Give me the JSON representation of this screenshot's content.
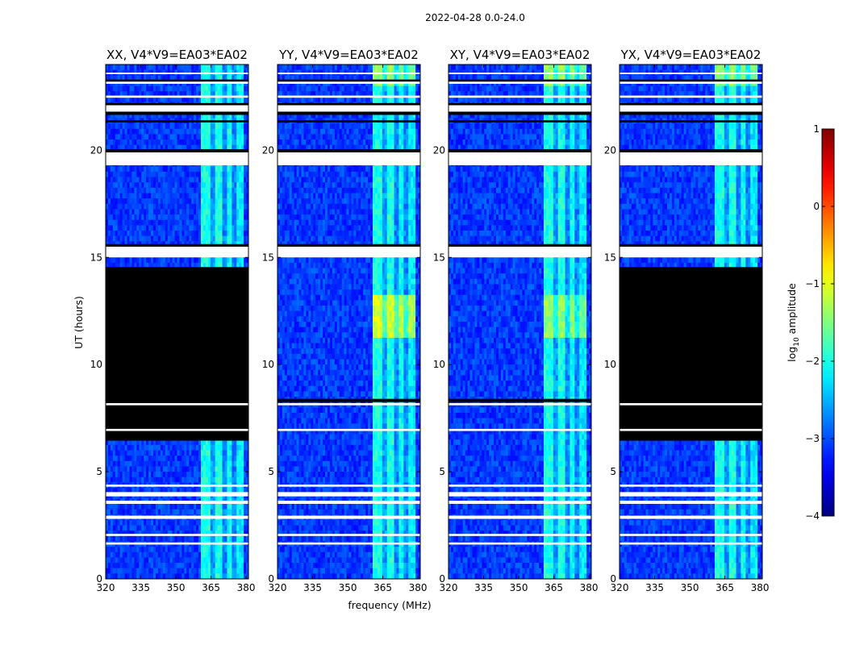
{
  "chart_data": {
    "type": "heatmap",
    "suptitle": "2022-04-28 0.0-24.0",
    "xlabel": "frequency (MHz)",
    "ylabel": "UT (hours)",
    "xlim": [
      320,
      381
    ],
    "ylim": [
      0,
      24
    ],
    "xticks": [
      320,
      335,
      350,
      365,
      380
    ],
    "yticks": [
      0,
      5,
      10,
      15,
      20
    ],
    "colorbar": {
      "label_prefix": "log",
      "label_sub": "10",
      "label_suffix": " amplitude",
      "ticks": [
        -4,
        -3,
        -2,
        -1,
        0,
        1
      ],
      "tick_labels": [
        "−4",
        "−3",
        "−2",
        "−1",
        "0",
        "1"
      ],
      "range": [
        -4,
        1
      ],
      "colormap": "jet"
    },
    "background_level": -3.1,
    "band_levels": [
      {
        "start": 360.5,
        "end": 364.5,
        "level": -2.0
      },
      {
        "start": 364.5,
        "end": 366.5,
        "level": -2.6
      },
      {
        "start": 366.5,
        "end": 369.5,
        "level": -2.0
      },
      {
        "start": 369.5,
        "end": 371.5,
        "level": -2.7
      },
      {
        "start": 371.5,
        "end": 374.0,
        "level": -2.1
      },
      {
        "start": 374.0,
        "end": 375.5,
        "level": -2.7
      },
      {
        "start": 375.5,
        "end": 379.0,
        "level": -2.2
      }
    ],
    "flagged_white_ut_bands": [
      [
        1.6,
        1.7
      ],
      [
        2.0,
        2.1
      ],
      [
        2.8,
        2.95
      ],
      [
        3.5,
        3.65
      ],
      [
        3.85,
        4.05
      ],
      [
        4.3,
        4.4
      ],
      [
        6.9,
        7.0
      ],
      [
        8.1,
        8.2
      ],
      [
        15.0,
        15.5
      ],
      [
        19.3,
        19.9
      ],
      [
        21.8,
        22.1
      ],
      [
        22.45,
        22.55
      ],
      [
        23.1,
        23.2
      ],
      [
        23.55,
        23.62
      ]
    ],
    "missing_black_ut_bands": [
      [
        8.25,
        8.4
      ],
      [
        15.5,
        15.62
      ],
      [
        19.9,
        20.05
      ],
      [
        21.3,
        21.4
      ],
      [
        21.65,
        21.8
      ],
      [
        22.1,
        22.2
      ],
      [
        23.2,
        23.3
      ]
    ],
    "panels": [
      {
        "title": "XX, V4*V9=EA03*EA02",
        "polarization": "XX",
        "flagged_black_ut_ranges": [
          [
            6.45,
            14.55
          ]
        ],
        "band_boost": [
          {
            "from": 11.2,
            "to": 13.2,
            "delta": 0.0
          }
        ]
      },
      {
        "title": "YY, V4*V9=EA03*EA02",
        "polarization": "YY",
        "flagged_black_ut_ranges": [],
        "band_boost": [
          {
            "from": 11.2,
            "to": 13.2,
            "delta": 0.9
          },
          {
            "from": 23.1,
            "to": 24.0,
            "delta": 0.6
          }
        ]
      },
      {
        "title": "XY, V4*V9=EA03*EA02",
        "polarization": "XY",
        "flagged_black_ut_ranges": [],
        "band_boost": [
          {
            "from": 11.2,
            "to": 13.2,
            "delta": 0.6
          },
          {
            "from": 23.1,
            "to": 24.0,
            "delta": 0.6
          }
        ]
      },
      {
        "title": "YX, V4*V9=EA03*EA02",
        "polarization": "YX",
        "flagged_black_ut_ranges": [
          [
            6.45,
            14.55
          ]
        ],
        "band_boost": [
          {
            "from": 23.1,
            "to": 24.0,
            "delta": 0.6
          }
        ]
      }
    ]
  }
}
